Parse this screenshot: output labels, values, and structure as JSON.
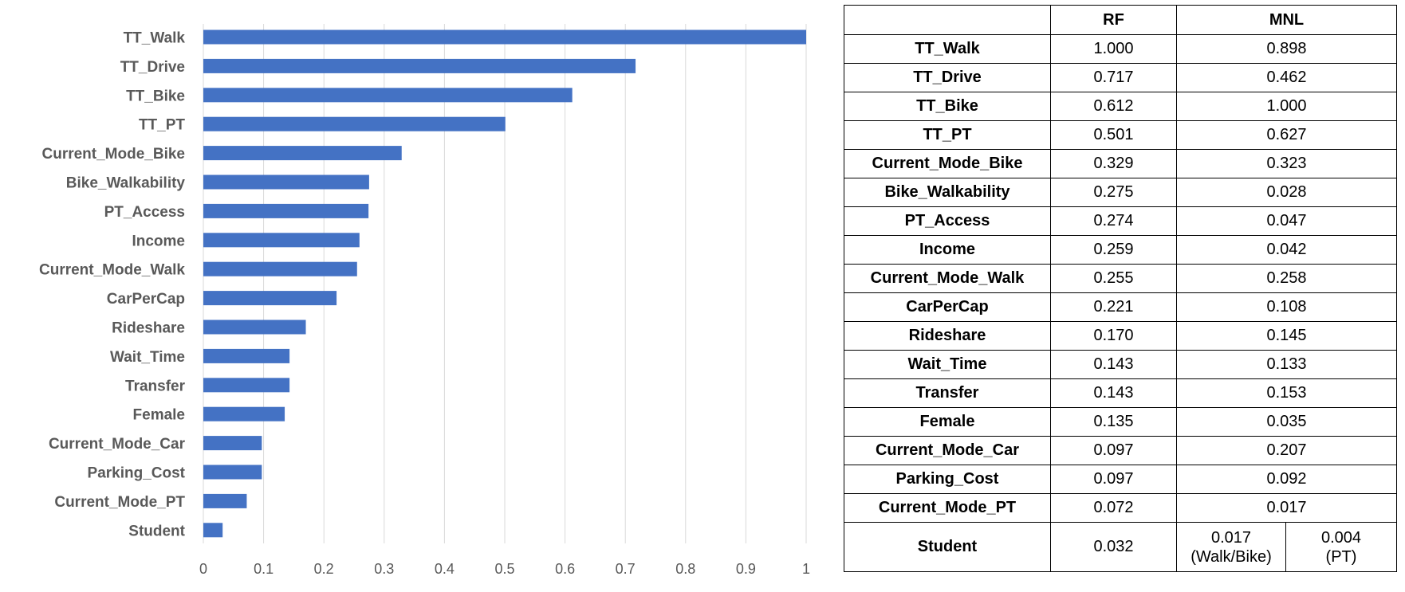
{
  "chart_data": {
    "type": "bar",
    "orientation": "horizontal",
    "categories": [
      "TT_Walk",
      "TT_Drive",
      "TT_Bike",
      "TT_PT",
      "Current_Mode_Bike",
      "Bike_Walkability",
      "PT_Access",
      "Income",
      "Current_Mode_Walk",
      "CarPerCap",
      "Rideshare",
      "Wait_Time",
      "Transfer",
      "Female",
      "Current_Mode_Car",
      "Parking_Cost",
      "Current_Mode_PT",
      "Student"
    ],
    "values": [
      1.0,
      0.717,
      0.612,
      0.501,
      0.329,
      0.275,
      0.274,
      0.259,
      0.255,
      0.221,
      0.17,
      0.143,
      0.143,
      0.135,
      0.097,
      0.097,
      0.072,
      0.032
    ],
    "xlim": [
      0,
      1
    ],
    "xticks": [
      "0",
      "0.1",
      "0.2",
      "0.3",
      "0.4",
      "0.5",
      "0.6",
      "0.7",
      "0.8",
      "0.9",
      "1"
    ],
    "grid": "vertical",
    "color": "#4472c4"
  },
  "table": {
    "headers": [
      "",
      "RF",
      "MNL"
    ],
    "rows": [
      {
        "name": "TT_Walk",
        "rf": "1.000",
        "mnl": "0.898"
      },
      {
        "name": "TT_Drive",
        "rf": "0.717",
        "mnl": "0.462"
      },
      {
        "name": "TT_Bike",
        "rf": "0.612",
        "mnl": "1.000"
      },
      {
        "name": "TT_PT",
        "rf": "0.501",
        "mnl": "0.627"
      },
      {
        "name": "Current_Mode_Bike",
        "rf": "0.329",
        "mnl": "0.323"
      },
      {
        "name": "Bike_Walkability",
        "rf": "0.275",
        "mnl": "0.028"
      },
      {
        "name": "PT_Access",
        "rf": "0.274",
        "mnl": "0.047"
      },
      {
        "name": "Income",
        "rf": "0.259",
        "mnl": "0.042"
      },
      {
        "name": "Current_Mode_Walk",
        "rf": "0.255",
        "mnl": "0.258"
      },
      {
        "name": "CarPerCap",
        "rf": "0.221",
        "mnl": "0.108"
      },
      {
        "name": "Rideshare",
        "rf": "0.170",
        "mnl": "0.145"
      },
      {
        "name": "Wait_Time",
        "rf": "0.143",
        "mnl": "0.133"
      },
      {
        "name": "Transfer",
        "rf": "0.143",
        "mnl": "0.153"
      },
      {
        "name": "Female",
        "rf": "0.135",
        "mnl": "0.035"
      },
      {
        "name": "Current_Mode_Car",
        "rf": "0.097",
        "mnl": "0.207"
      },
      {
        "name": "Parking_Cost",
        "rf": "0.097",
        "mnl": "0.092"
      },
      {
        "name": "Current_Mode_PT",
        "rf": "0.072",
        "mnl": "0.017"
      }
    ],
    "last_row": {
      "name": "Student",
      "rf": "0.032",
      "mnl_walk_value": "0.017",
      "mnl_walk_note": "(Walk/Bike)",
      "mnl_pt_value": "0.004",
      "mnl_pt_note": "(PT)"
    }
  }
}
